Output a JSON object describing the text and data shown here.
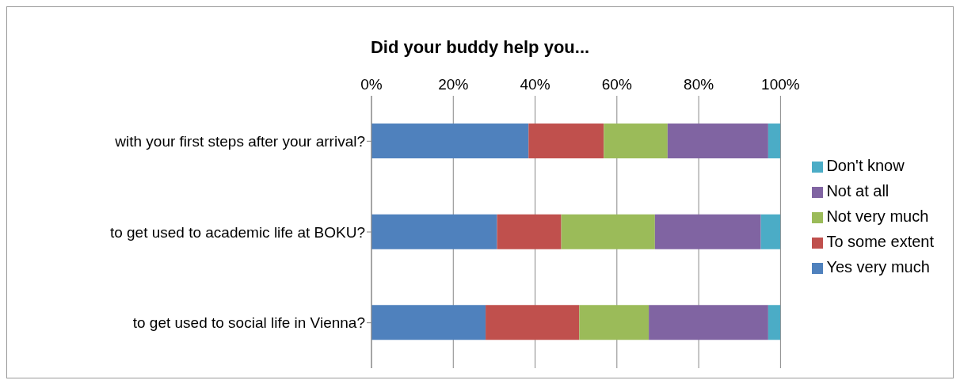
{
  "chart_data": {
    "type": "bar",
    "title": "Did your buddy help you...",
    "orientation": "horizontal",
    "stacked": true,
    "categories": [
      "with your first steps after your arrival?",
      "to get used to academic life at BOKU?",
      "to get used to social life in Vienna?"
    ],
    "series": [
      {
        "name": "Yes very much",
        "color": "#4f81bd",
        "values": [
          38.4,
          30.7,
          27.9
        ]
      },
      {
        "name": "To some extent",
        "color": "#c0504d",
        "values": [
          18.4,
          15.7,
          22.9
        ]
      },
      {
        "name": "Not very much",
        "color": "#9bbb59",
        "values": [
          15.6,
          22.9,
          17.0
        ]
      },
      {
        "name": "Not at all",
        "color": "#8064a2",
        "values": [
          24.6,
          25.9,
          29.2
        ]
      },
      {
        "name": "Don't know",
        "color": "#4bacc6",
        "values": [
          3.0,
          4.8,
          3.0
        ]
      }
    ],
    "xlim": [
      0,
      100
    ],
    "xticks": [
      {
        "value": 0,
        "label": "0%"
      },
      {
        "value": 20,
        "label": "20%"
      },
      {
        "value": 40,
        "label": "40%"
      },
      {
        "value": 60,
        "label": "60%"
      },
      {
        "value": 80,
        "label": "80%"
      },
      {
        "value": 100,
        "label": "100%"
      }
    ],
    "grid": "x",
    "legend": "right"
  }
}
